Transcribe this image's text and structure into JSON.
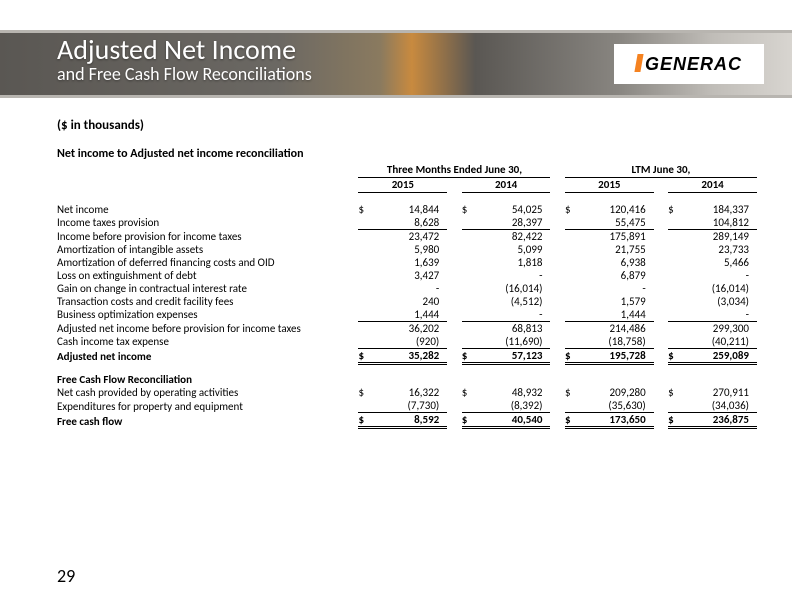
{
  "header": {
    "title": "Adjusted Net Income",
    "subtitle": "and Free Cash Flow Reconciliations",
    "logo_text": "GENERAC",
    "stripe_color": "#b8b5b0",
    "logo_accent_color": "#f58220"
  },
  "page_number": "29",
  "units_label": "($ in thousands)",
  "table": {
    "section1_title": "Net income to Adjusted net income reconciliation",
    "period1": "Three Months Ended June 30,",
    "period2": "LTM June 30,",
    "year1": "2015",
    "year2": "2014",
    "year3": "2015",
    "year4": "2014",
    "rows": [
      {
        "label": "Net income",
        "c": "$",
        "v": [
          "14,844",
          "54,025",
          "120,416",
          "184,337"
        ]
      },
      {
        "label": "Income taxes provision",
        "c": "",
        "v": [
          "8,628",
          "28,397",
          "55,475",
          "104,812"
        ],
        "ul": true
      },
      {
        "label": "Income before provision for income taxes",
        "c": "",
        "v": [
          "23,472",
          "82,422",
          "175,891",
          "289,149"
        ]
      },
      {
        "label": "Amortization of intangible assets",
        "c": "",
        "v": [
          "5,980",
          "5,099",
          "21,755",
          "23,733"
        ]
      },
      {
        "label": "Amortization of deferred financing costs and OID",
        "c": "",
        "v": [
          "1,639",
          "1,818",
          "6,938",
          "5,466"
        ]
      },
      {
        "label": "Loss on extinguishment of debt",
        "c": "",
        "v": [
          "3,427",
          "-",
          "6,879",
          "-"
        ]
      },
      {
        "label": "Gain on change in contractual interest rate",
        "c": "",
        "v": [
          "-",
          "(16,014)",
          "-",
          "(16,014)"
        ]
      },
      {
        "label": "Transaction costs and credit facility fees",
        "c": "",
        "v": [
          "240",
          "(4,512)",
          "1,579",
          "(3,034)"
        ]
      },
      {
        "label": "Business optimization expenses",
        "c": "",
        "v": [
          "1,444",
          "-",
          "1,444",
          "-"
        ],
        "ul": true
      },
      {
        "label": "Adjusted net income before provision for income taxes",
        "c": "",
        "v": [
          "36,202",
          "68,813",
          "214,486",
          "299,300"
        ]
      },
      {
        "label": "Cash income tax expense",
        "c": "",
        "v": [
          "(920)",
          "(11,690)",
          "(18,758)",
          "(40,211)"
        ],
        "ul": true
      },
      {
        "label": "Adjusted net income",
        "c": "$",
        "v": [
          "35,282",
          "57,123",
          "195,728",
          "259,089"
        ],
        "total": true
      }
    ],
    "section2_title": "Free Cash Flow Reconciliation",
    "rows2": [
      {
        "label": "Net cash provided by operating activities",
        "c": "$",
        "v": [
          "16,322",
          "48,932",
          "209,280",
          "270,911"
        ]
      },
      {
        "label": "Expenditures for property and equipment",
        "c": "",
        "v": [
          "(7,730)",
          "(8,392)",
          "(35,630)",
          "(34,036)"
        ],
        "ul": true
      },
      {
        "label": "Free cash flow",
        "c": "$",
        "v": [
          "8,592",
          "40,540",
          "173,650",
          "236,875"
        ],
        "total": true
      }
    ]
  }
}
